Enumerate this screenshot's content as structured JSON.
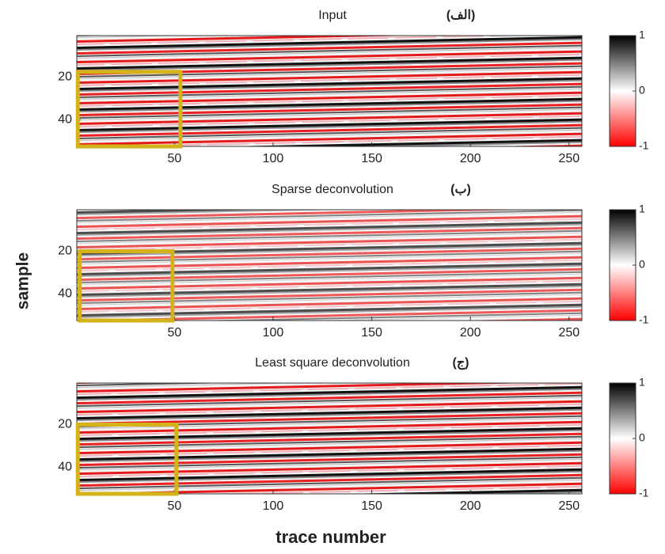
{
  "figure": {
    "xlabel": "trace number",
    "ylabel": "sample"
  },
  "chart_data": [
    {
      "type": "heatmap",
      "title": "Input",
      "label": "(الف)",
      "xlim": [
        0.5,
        256.5
      ],
      "xticks": [
        50,
        100,
        150,
        200,
        250
      ],
      "ylim": [
        0.5,
        52.5
      ],
      "yticks": [
        20,
        40
      ],
      "clim": [
        -1,
        1
      ],
      "cticks": [
        -1,
        0,
        1
      ],
      "colormap": [
        "#ff0000",
        "#ffffff",
        "#000000"
      ],
      "highlight": {
        "x": [
          1,
          53
        ],
        "y": [
          17.5,
          52.5
        ],
        "color": "#d4b21a"
      }
    },
    {
      "type": "heatmap",
      "title": "Sparse deconvolution",
      "label": "(ب)",
      "xlim": [
        0.5,
        256.5
      ],
      "xticks": [
        50,
        100,
        150,
        200,
        250
      ],
      "ylim": [
        0.5,
        52.5
      ],
      "yticks": [
        20,
        40
      ],
      "clim": [
        -1,
        1
      ],
      "cticks": [
        -1,
        0,
        1
      ],
      "colormap": [
        "#ff0000",
        "#ffffff",
        "#000000"
      ],
      "highlight": {
        "x": [
          2,
          49
        ],
        "y": [
          20,
          52.5
        ],
        "color": "#d4b21a"
      }
    },
    {
      "type": "heatmap",
      "title": "Least square deconvolution",
      "label": "(ج)",
      "xlim": [
        0.5,
        256.5
      ],
      "xticks": [
        50,
        100,
        150,
        200,
        250
      ],
      "ylim": [
        0.5,
        52.5
      ],
      "yticks": [
        20,
        40
      ],
      "clim": [
        -1,
        1
      ],
      "cticks": [
        -1,
        0,
        1
      ],
      "colormap": [
        "#ff0000",
        "#ffffff",
        "#000000"
      ],
      "highlight": {
        "x": [
          1,
          51
        ],
        "y": [
          20,
          52.5
        ],
        "color": "#d4b21a"
      }
    }
  ]
}
